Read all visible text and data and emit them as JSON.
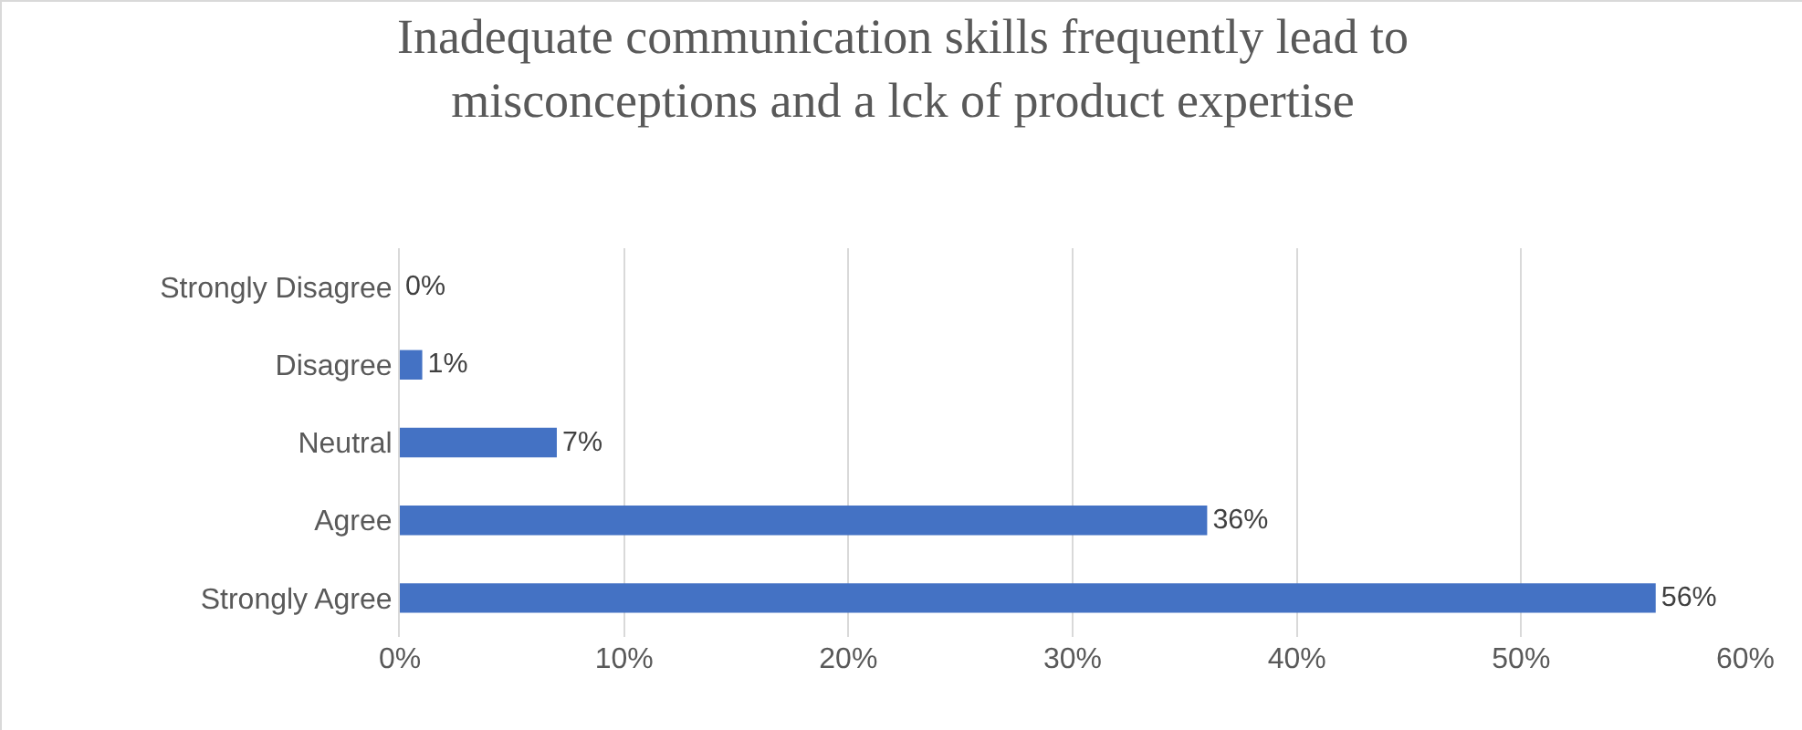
{
  "chart_data": {
    "type": "bar",
    "orientation": "horizontal",
    "title": "Inadequate communication skills frequently lead to misconceptions and a lck of product expertise",
    "categories": [
      "Strongly Disagree",
      "Disagree",
      "Neutral",
      "Agree",
      "Strongly Agree"
    ],
    "values": [
      0,
      1,
      7,
      36,
      56
    ],
    "value_labels": [
      "0%",
      "1%",
      "7%",
      "36%",
      "56%"
    ],
    "color": "#4472c4",
    "xlim": [
      0,
      60
    ],
    "xticks": [
      {
        "value": 0,
        "label": "0%"
      },
      {
        "value": 10,
        "label": "10%"
      },
      {
        "value": 20,
        "label": "20%"
      },
      {
        "value": 30,
        "label": "30%"
      },
      {
        "value": 40,
        "label": "40%"
      },
      {
        "value": 50,
        "label": "50%"
      },
      {
        "value": 60,
        "label": "60%"
      }
    ],
    "grid": "x"
  }
}
